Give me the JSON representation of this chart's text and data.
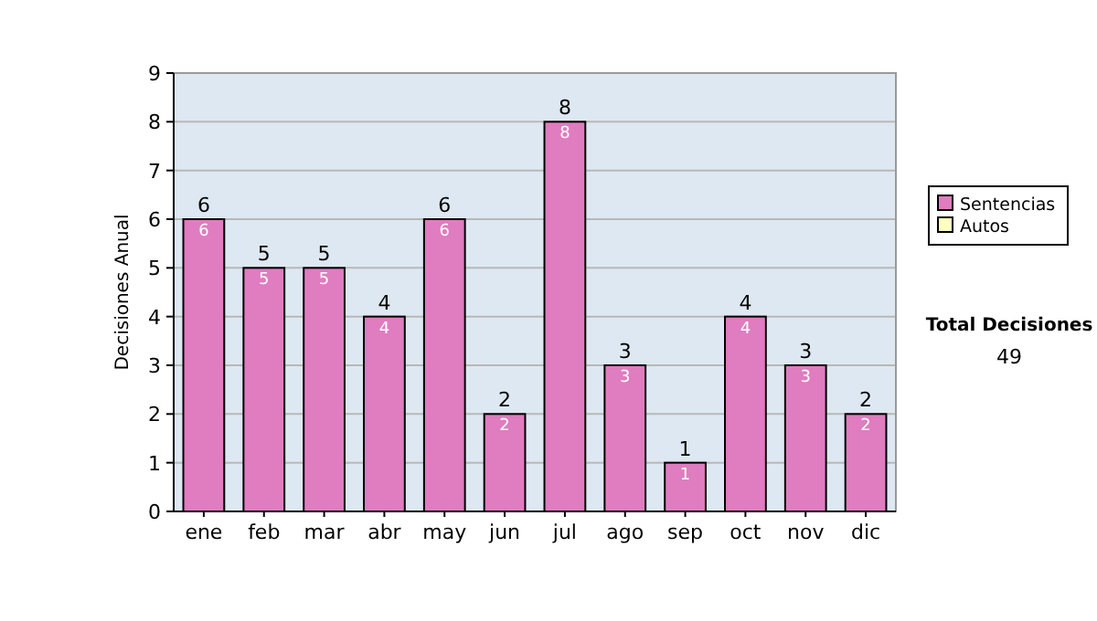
{
  "chart_data": {
    "type": "bar",
    "stacked": true,
    "ylabel": "Decisiones Anual",
    "categories": [
      "ene",
      "feb",
      "mar",
      "abr",
      "may",
      "jun",
      "jul",
      "ago",
      "sep",
      "oct",
      "nov",
      "dic"
    ],
    "series": [
      {
        "name": "Sentencias",
        "color": "#e07cc0",
        "values": [
          6,
          5,
          5,
          4,
          6,
          2,
          8,
          3,
          1,
          4,
          3,
          2
        ]
      },
      {
        "name": "Autos",
        "color": "#ffffc0",
        "values": [
          null,
          null,
          null,
          null,
          null,
          null,
          null,
          null,
          null,
          null,
          null,
          null
        ]
      }
    ],
    "ylim": [
      0,
      9
    ],
    "yticks": [
      0,
      1,
      2,
      3,
      4,
      5,
      6,
      7,
      8,
      9
    ],
    "grid": "y",
    "legend": "right",
    "data_labels": true,
    "totals": [
      "6",
      "5",
      "5",
      "4",
      "6",
      "2",
      "8",
      "3",
      "1",
      "4",
      "3",
      "2"
    ],
    "annotations": [
      "Total Decisiones",
      "49"
    ]
  }
}
